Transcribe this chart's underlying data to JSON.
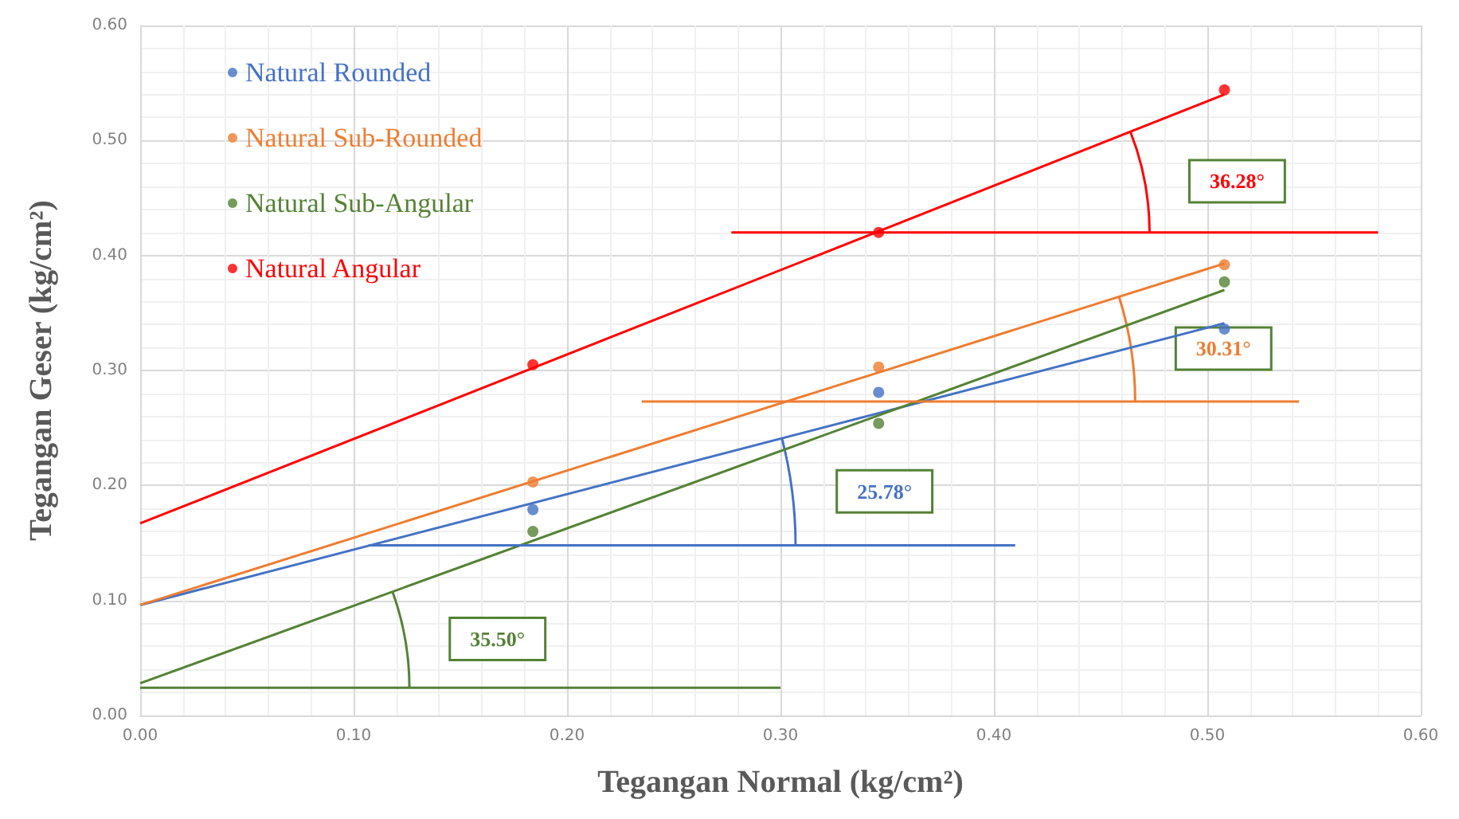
{
  "chart_data": {
    "type": "scatter",
    "xlabel": "Tegangan Normal (kg/cm²)",
    "ylabel": "Tegangan Geser (kg/cm²)",
    "xlim": [
      0,
      0.6
    ],
    "ylim": [
      0,
      0.6
    ],
    "xticks": [
      {
        "value": 0,
        "label": "0.00"
      },
      {
        "value": 0.1,
        "label": "0.10"
      },
      {
        "value": 0.2,
        "label": "0.20"
      },
      {
        "value": 0.3,
        "label": "0.30"
      },
      {
        "value": 0.4,
        "label": "0.40"
      },
      {
        "value": 0.5,
        "label": "0.50"
      },
      {
        "value": 0.6,
        "label": "0.60"
      }
    ],
    "yticks": [
      {
        "value": 0,
        "label": "0.00"
      },
      {
        "value": 0.1,
        "label": "0.10"
      },
      {
        "value": 0.2,
        "label": "0.20"
      },
      {
        "value": 0.3,
        "label": "0.30"
      },
      {
        "value": 0.4,
        "label": "0.40"
      },
      {
        "value": 0.5,
        "label": "0.50"
      },
      {
        "value": 0.6,
        "label": "0.60"
      }
    ],
    "x": [
      0.184,
      0.346,
      0.508
    ],
    "grid": true,
    "legend": "top left",
    "line_style": "solid",
    "series": [
      {
        "name": "Natural Rounded",
        "marker": "circle",
        "color": "#4472c4",
        "values": [
          0.179,
          0.281,
          0.336
        ]
      },
      {
        "name": "Natural Sub-Rounded",
        "marker": "circle",
        "color": "#ed7d31",
        "values": [
          0.203,
          0.303,
          0.392
        ]
      },
      {
        "name": "Natural Sub-Angular",
        "marker": "circle",
        "color": "#548235",
        "values": [
          0.16,
          0.254,
          0.377
        ]
      },
      {
        "name": "Natural Angular",
        "marker": "circle",
        "color": "#ff0000",
        "values": [
          0.305,
          0.42,
          0.544
        ]
      },
      {
        "type": "line",
        "color": "#4472c4",
        "x": [
          0,
          0.508
        ],
        "values": [
          0.096,
          0.341
        ]
      },
      {
        "type": "line",
        "color": "#ed7d31",
        "x": [
          0,
          0.508
        ],
        "values": [
          0.096,
          0.393
        ]
      },
      {
        "type": "line",
        "color": "#548235",
        "x": [
          0,
          0.508
        ],
        "values": [
          0.028,
          0.37
        ]
      },
      {
        "type": "line",
        "color": "#ff0000",
        "x": [
          0,
          0.508
        ],
        "values": [
          0.167,
          0.54
        ]
      },
      {
        "type": "line",
        "color": "#4472c4",
        "x": [
          0.107,
          0.41
        ],
        "values": [
          0.148,
          0.148
        ]
      },
      {
        "type": "line",
        "color": "#ed7d31",
        "x": [
          0.235,
          0.543
        ],
        "values": [
          0.273,
          0.273
        ]
      },
      {
        "type": "line",
        "color": "#548235",
        "x": [
          0,
          0.3
        ],
        "values": [
          0.024,
          0.024
        ]
      },
      {
        "type": "line",
        "color": "#ff0000",
        "x": [
          0.277,
          0.58
        ],
        "values": [
          0.42,
          0.42
        ]
      }
    ],
    "annotations": [
      "25.78°",
      "30.31°",
      "35.50°",
      "36.28°"
    ]
  }
}
